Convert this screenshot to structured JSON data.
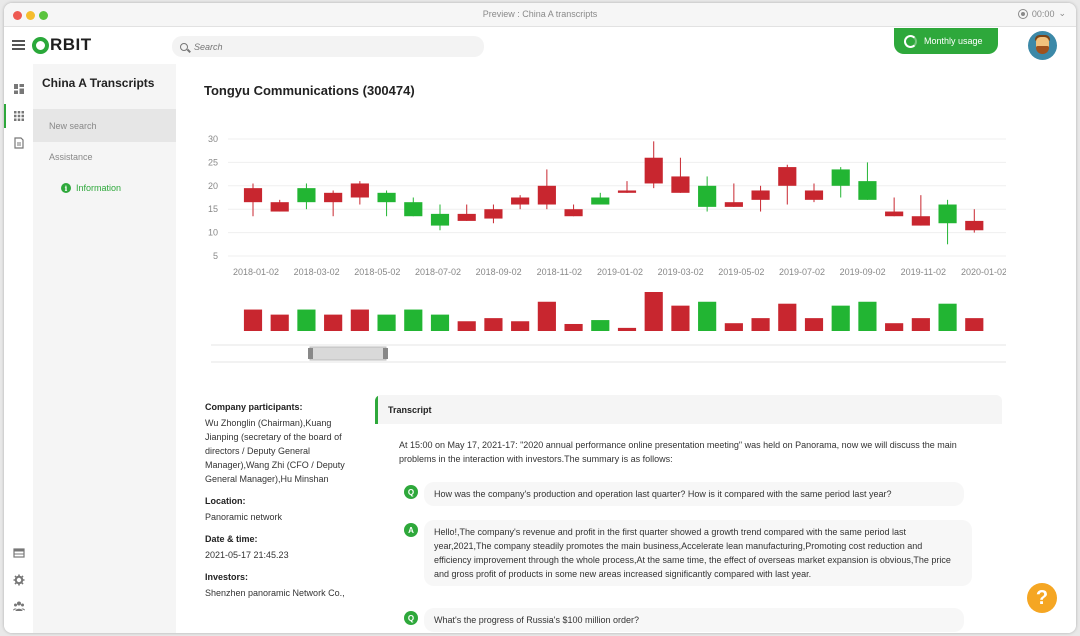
{
  "window": {
    "title": "Preview : China A transcripts",
    "recording_time": "00:00"
  },
  "topbar": {
    "logo_rest": "RBIT",
    "search_placeholder": "Search",
    "monthly_usage_label": "Monthly usage"
  },
  "iconbar": {
    "icons": [
      "dashboard-icon",
      "grid-icon",
      "document-icon",
      "table-icon",
      "settings-gear-icon",
      "users-icon"
    ]
  },
  "subnav": {
    "title": "China A Transcripts",
    "items": [
      {
        "label": "New search",
        "active": true
      },
      {
        "label": "Assistance",
        "active": false
      }
    ],
    "info_label": "Information"
  },
  "main": {
    "title": "Tongyu Communications (300474)"
  },
  "chart_data": {
    "type": "candlestick",
    "yticks": [
      30,
      25,
      20,
      15,
      10,
      5
    ],
    "ylim": [
      5,
      30
    ],
    "x_tick_labels": [
      "2018-01-02",
      "2018-03-02",
      "2018-05-02",
      "2018-07-02",
      "2018-09-02",
      "2018-11-02",
      "2019-01-02",
      "2019-03-02",
      "2019-05-02",
      "2019-07-02",
      "2019-09-02",
      "2019-11-02",
      "2020-01-02"
    ],
    "candles": [
      {
        "open": 16.5,
        "close": 19.5,
        "high": 20.5,
        "low": 13.5,
        "up": false
      },
      {
        "open": 14.5,
        "close": 16.5,
        "high": 17.0,
        "low": 14.5,
        "up": false
      },
      {
        "open": 16.5,
        "close": 19.5,
        "high": 20.5,
        "low": 15.0,
        "up": true
      },
      {
        "open": 16.5,
        "close": 18.5,
        "high": 19.0,
        "low": 13.5,
        "up": false
      },
      {
        "open": 17.5,
        "close": 20.5,
        "high": 21.0,
        "low": 16.0,
        "up": false
      },
      {
        "open": 16.5,
        "close": 18.5,
        "high": 19.0,
        "low": 13.5,
        "up": true
      },
      {
        "open": 13.5,
        "close": 16.5,
        "high": 17.5,
        "low": 13.5,
        "up": true
      },
      {
        "open": 11.5,
        "close": 14.0,
        "high": 16.0,
        "low": 10.5,
        "up": true
      },
      {
        "open": 12.5,
        "close": 14.0,
        "high": 16.0,
        "low": 12.5,
        "up": false
      },
      {
        "open": 13.0,
        "close": 15.0,
        "high": 16.0,
        "low": 12.0,
        "up": false
      },
      {
        "open": 16.0,
        "close": 17.5,
        "high": 18.0,
        "low": 15.0,
        "up": false
      },
      {
        "open": 16.0,
        "close": 20.0,
        "high": 23.5,
        "low": 15.0,
        "up": false
      },
      {
        "open": 13.5,
        "close": 15.0,
        "high": 16.0,
        "low": 13.5,
        "up": false
      },
      {
        "open": 16.0,
        "close": 17.5,
        "high": 18.5,
        "low": 16.0,
        "up": true
      },
      {
        "open": 18.5,
        "close": 19.0,
        "high": 21.0,
        "low": 18.5,
        "up": false
      },
      {
        "open": 20.5,
        "close": 26.0,
        "high": 29.5,
        "low": 19.5,
        "up": false
      },
      {
        "open": 18.5,
        "close": 22.0,
        "high": 26.0,
        "low": 18.5,
        "up": false
      },
      {
        "open": 15.5,
        "close": 20.0,
        "high": 22.0,
        "low": 14.5,
        "up": true
      },
      {
        "open": 15.5,
        "close": 16.5,
        "high": 20.5,
        "low": 15.5,
        "up": false
      },
      {
        "open": 17.0,
        "close": 19.0,
        "high": 20.0,
        "low": 14.5,
        "up": false
      },
      {
        "open": 20.0,
        "close": 24.0,
        "high": 24.5,
        "low": 16.0,
        "up": false
      },
      {
        "open": 17.0,
        "close": 19.0,
        "high": 20.5,
        "low": 16.5,
        "up": false
      },
      {
        "open": 20.0,
        "close": 23.5,
        "high": 24.0,
        "low": 17.5,
        "up": true
      },
      {
        "open": 17.0,
        "close": 21.0,
        "high": 25.0,
        "low": 17.0,
        "up": true
      },
      {
        "open": 13.5,
        "close": 14.5,
        "high": 17.5,
        "low": 13.5,
        "up": false
      },
      {
        "open": 11.5,
        "close": 13.5,
        "high": 18.0,
        "low": 11.5,
        "up": false
      },
      {
        "open": 12.0,
        "close": 16.0,
        "high": 17.0,
        "low": 7.5,
        "up": true
      },
      {
        "open": 10.5,
        "close": 12.5,
        "high": 15.0,
        "low": 10.0,
        "up": false
      }
    ],
    "volumes": [
      0.55,
      0.42,
      0.55,
      0.42,
      0.55,
      0.42,
      0.55,
      0.42,
      0.25,
      0.33,
      0.25,
      0.75,
      0.18,
      0.28,
      0.08,
      1.0,
      0.65,
      0.75,
      0.2,
      0.33,
      0.7,
      0.33,
      0.65,
      0.75,
      0.2,
      0.33,
      0.7,
      0.33
    ],
    "colors": {
      "up": "#22b533",
      "down": "#c8262f"
    }
  },
  "details": {
    "participants_label": "Company participants:",
    "participants": "Wu Zhonglin (Chairman),Kuang Jianping (secretary of the board of directors / Deputy General Manager),Wang Zhi (CFO / Deputy General Manager),Hu Minshan",
    "location_label": "Location:",
    "location": "Panoramic network",
    "datetime_label": "Date & time:",
    "datetime": "2021-05-17 21:45.23",
    "investors_label": "Investors:",
    "investors": "Shenzhen panoramic Network Co.,"
  },
  "transcript": {
    "heading": "Transcript",
    "intro": "At 15:00 on May 17, 2021-17: \"2020 annual performance online presentation meeting\" was held on Panorama, now we will discuss the main problems in the interaction with investors.The summary is as follows:",
    "qa": [
      {
        "badge": "Q",
        "text": "How was the company's production and operation last quarter? How is it compared with the same period last year?"
      },
      {
        "badge": "A",
        "text": "Hello!,The company's revenue and profit in the first quarter showed a growth trend compared with the same period last year,2021,The company steadily promotes the main business,Accelerate lean manufacturing,Promoting cost reduction and efficiency improvement through the whole process,At the same time, the effect of overseas market expansion is obvious,The price and gross profit of products in some new areas increased significantly compared with last year."
      },
      {
        "badge": "Q",
        "text": "What's the progress of Russia's $100 million order?"
      }
    ]
  },
  "help": {
    "label": "?"
  }
}
